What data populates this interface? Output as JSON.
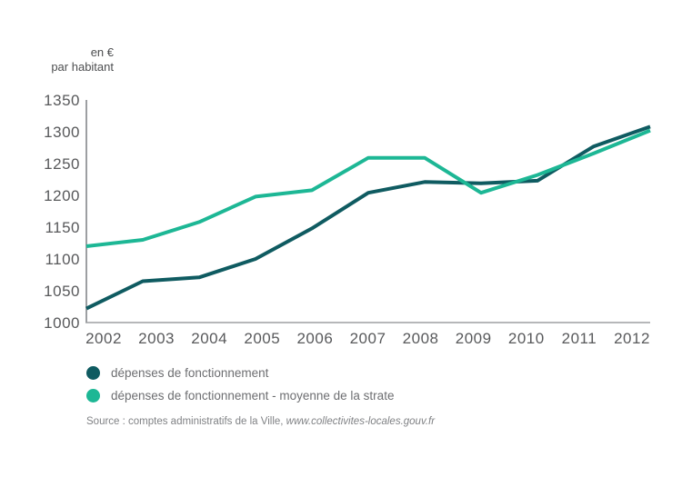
{
  "unit_label": {
    "line1": "en €",
    "line2": "par habitant"
  },
  "chart_data": {
    "type": "line",
    "x": [
      2002,
      2003,
      2004,
      2005,
      2006,
      2007,
      2008,
      2009,
      2010,
      2011,
      2012
    ],
    "series": [
      {
        "name": "dépenses de fonctionnement",
        "color": "#0f5b61",
        "values": [
          1022,
          1065,
          1071,
          1100,
          1148,
          1204,
          1221,
          1219,
          1223,
          1277,
          1308
        ]
      },
      {
        "name": "dépenses de fonctionnement - moyenne de la strate",
        "color": "#1db795",
        "values": [
          1120,
          1130,
          1158,
          1198,
          1208,
          1259,
          1259,
          1204,
          1232,
          1266,
          1302
        ]
      }
    ],
    "title": "",
    "xlabel": "",
    "ylabel": "en € par habitant",
    "ylim": [
      1000,
      1350
    ],
    "yticks": [
      1000,
      1050,
      1100,
      1150,
      1200,
      1250,
      1300,
      1350
    ],
    "grid": false,
    "legend_position": "bottom-left",
    "axis_color": "#9d9fa2"
  },
  "source": {
    "prefix": "Source : comptes administratifs de la Ville, ",
    "url": "www.collectivites-locales.gouv.fr"
  }
}
